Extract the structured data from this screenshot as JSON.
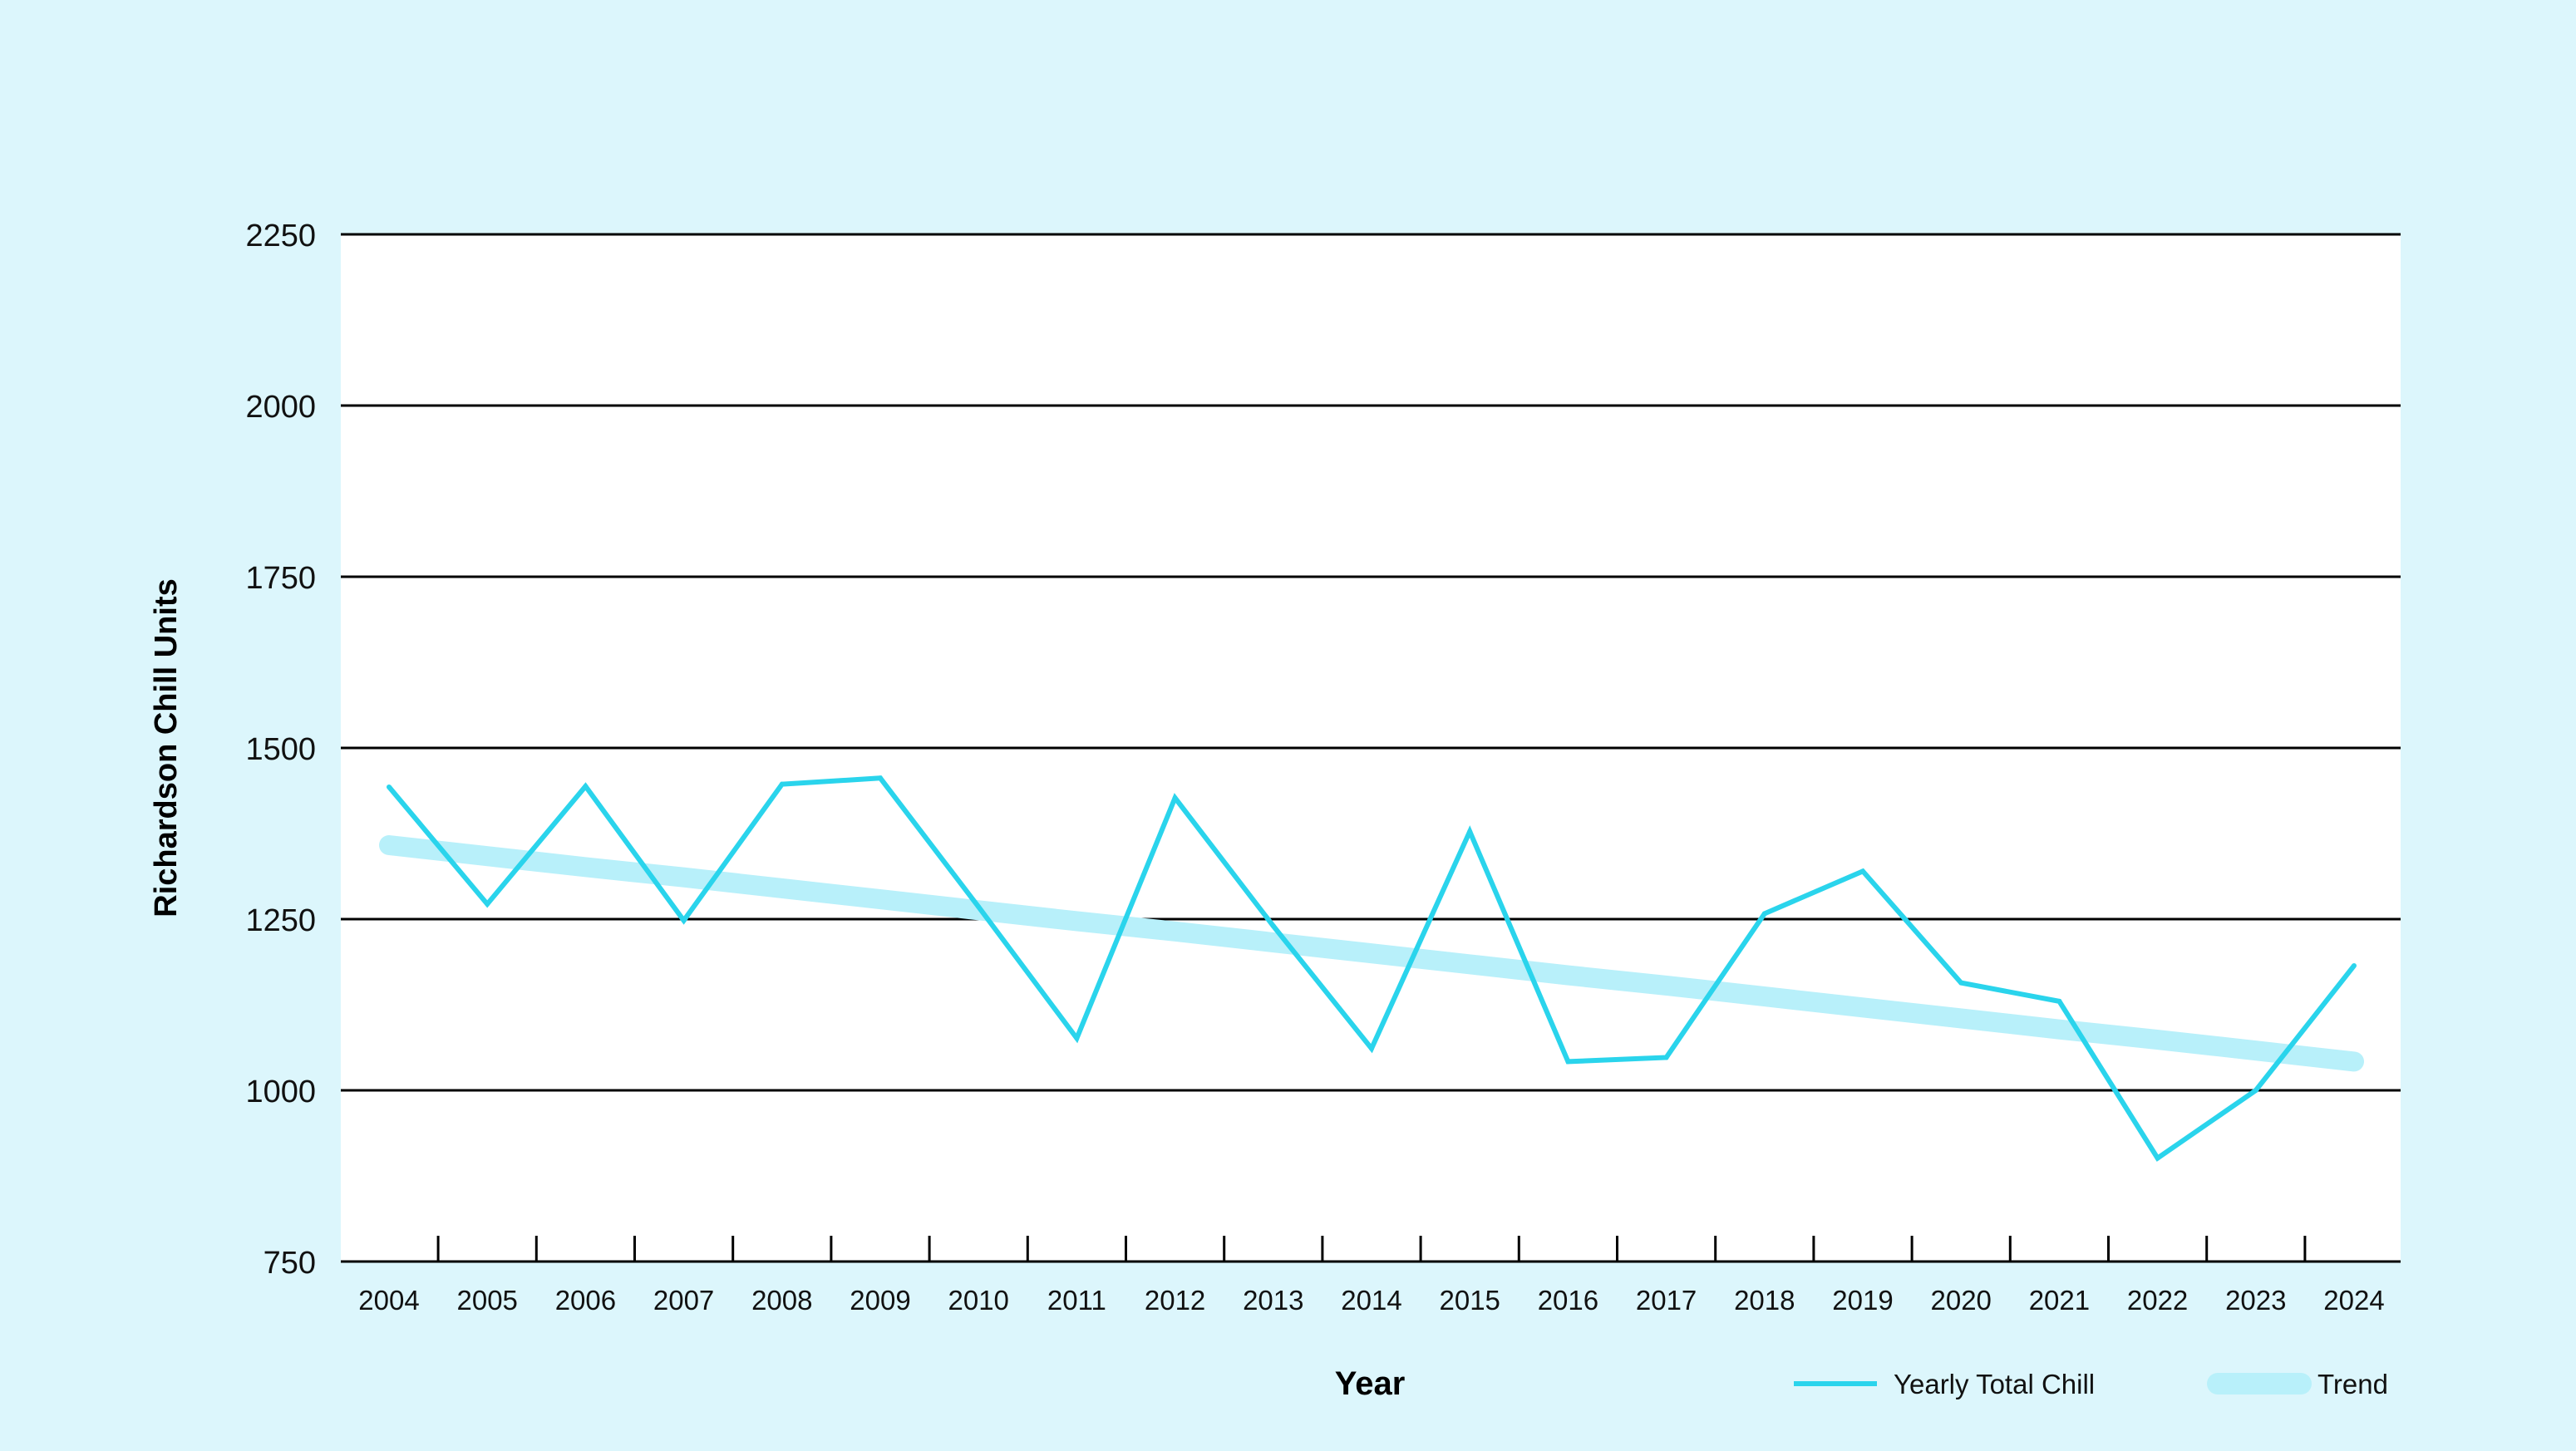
{
  "chart_data": {
    "type": "line",
    "title": "",
    "xlabel": "Year",
    "ylabel": "Richardson Chill Units",
    "ylim": [
      750,
      2250
    ],
    "yticks": [
      750,
      1000,
      1250,
      1500,
      1750,
      2000,
      2250
    ],
    "grid": "horizontal",
    "legend_position": "bottom-right",
    "x": [
      "2004",
      "2005",
      "2006",
      "2007",
      "2008",
      "2009",
      "2010",
      "2011",
      "2012",
      "2013",
      "2014",
      "2015",
      "2016",
      "2017",
      "2018",
      "2019",
      "2020",
      "2021",
      "2022",
      "2023",
      "2024"
    ],
    "series": [
      {
        "name": "Yearly Total Chill",
        "color": "#2ad4ec",
        "values": [
          1443,
          1272,
          1444,
          1248,
          1447,
          1456,
          1268,
          1076,
          1427,
          1240,
          1061,
          1378,
          1042,
          1048,
          1258,
          1320,
          1157,
          1130,
          901,
          1000,
          1182
        ]
      },
      {
        "name": "Trend",
        "color": "#b8f0fa",
        "values": [
          1358,
          1342,
          1326,
          1311,
          1295,
          1279,
          1263,
          1247,
          1232,
          1216,
          1200,
          1184,
          1168,
          1153,
          1137,
          1121,
          1105,
          1089,
          1074,
          1058,
          1042
        ]
      }
    ]
  }
}
